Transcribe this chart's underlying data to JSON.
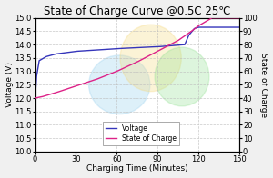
{
  "title": "State of Charge Curve @0.5C 25℃",
  "xlabel": "Charging Time (Minutes)",
  "ylabel_left": "Voltage (V)",
  "ylabel_right": "State of Charge",
  "xlim": [
    0,
    150
  ],
  "ylim_left": [
    10.0,
    15.0
  ],
  "ylim_right": [
    0,
    100
  ],
  "xticks": [
    0,
    30,
    60,
    90,
    120,
    150
  ],
  "yticks_left": [
    10.0,
    10.5,
    11.0,
    11.5,
    12.0,
    12.5,
    13.0,
    13.5,
    14.0,
    14.5,
    15.0
  ],
  "yticks_right": [
    0,
    10,
    20,
    30,
    40,
    50,
    60,
    70,
    80,
    90,
    100
  ],
  "voltage_color": "#3535bb",
  "soc_color": "#dd2288",
  "legend_labels": [
    "Voltage",
    "State of Charge"
  ],
  "bg_color": "#f0f0f0",
  "plot_bg_color": "#ffffff",
  "grid_color": "#bbbbbb",
  "title_fontsize": 8.5,
  "axis_fontsize": 6.5,
  "tick_fontsize": 6,
  "legend_fontsize": 5.5,
  "figsize": [
    3.0,
    1.96
  ],
  "dpi": 100
}
